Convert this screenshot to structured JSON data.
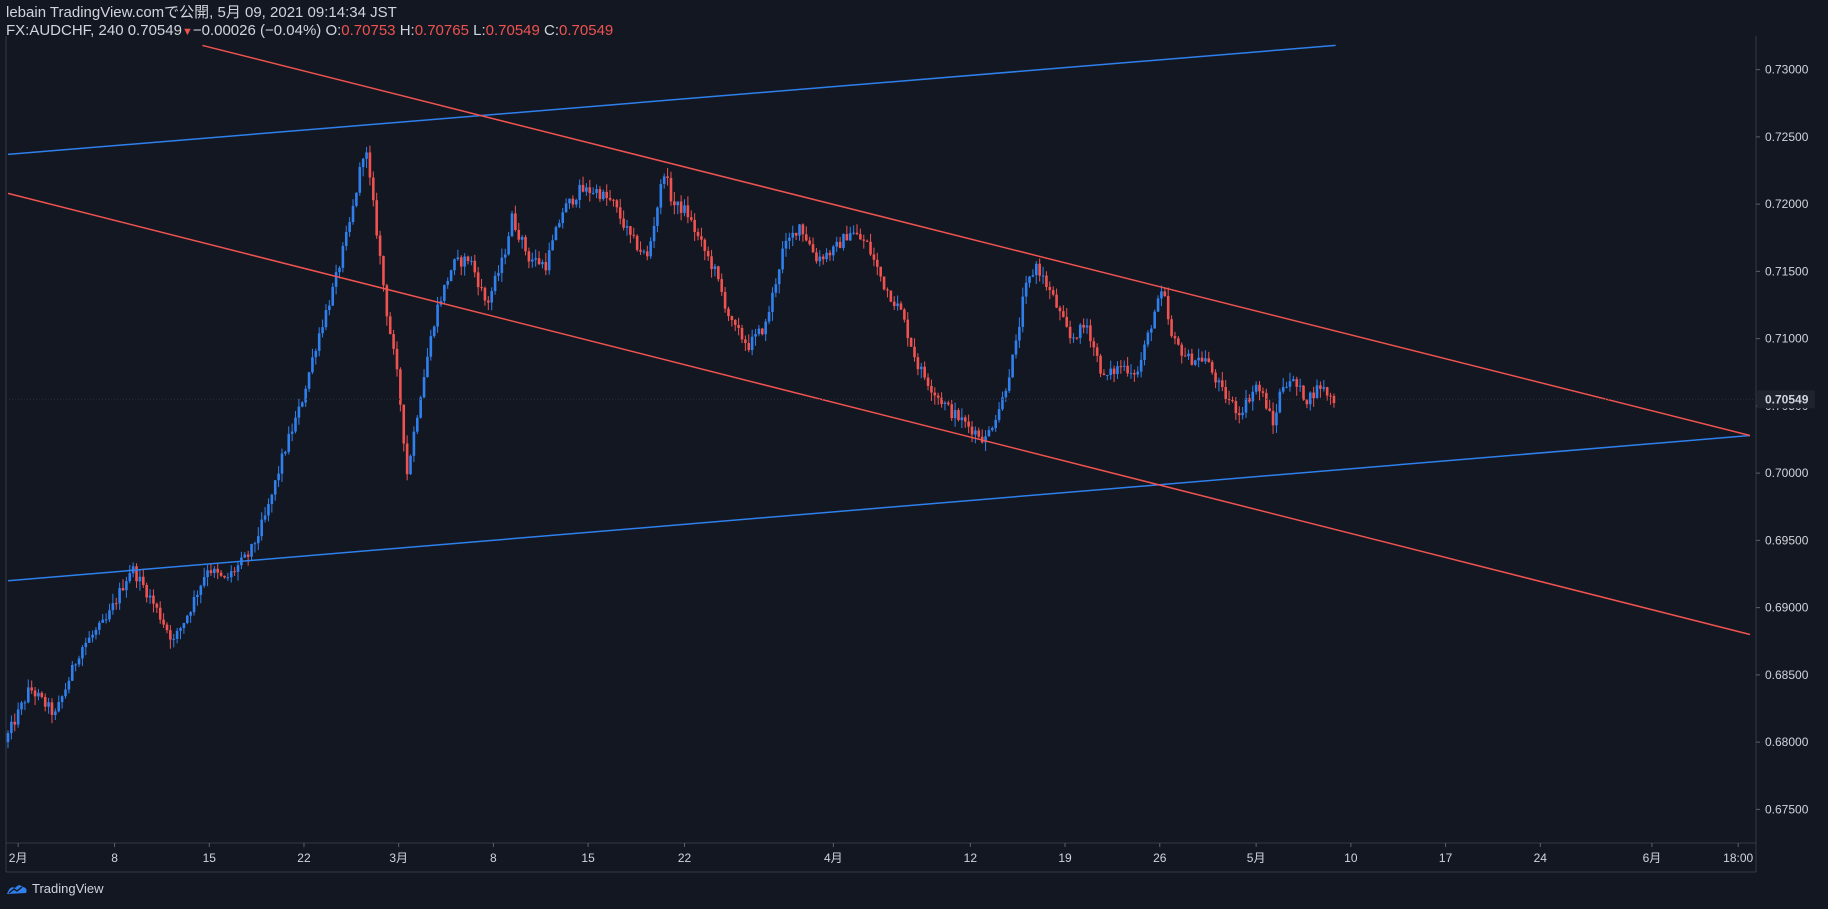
{
  "header": {
    "published_line": "lebain TradingView.comで公開, 5月 09, 2021 09:14:34 JST",
    "symbol_line": "FX:AUDCHF, 240",
    "last": "0.70549",
    "change": "−0.00026 (−0.04%)",
    "o_label": "O:",
    "o_value": "0.70753",
    "h_label": "H:",
    "h_value": "0.70765",
    "l_label": "L:",
    "l_value": "0.70549",
    "c_label": "C:",
    "c_value": "0.70549"
  },
  "footer": {
    "brand": "TradingView",
    "logo_icon": "tradingview-logo-icon"
  },
  "colors": {
    "background": "#131722",
    "up": "#2f80ed",
    "down": "#ef5350",
    "trend_blue": "#2f80ed",
    "trend_red": "#ef5350",
    "text": "#d1d4dc"
  },
  "chart_data": {
    "type": "candlestick",
    "symbol": "FX:AUDCHF",
    "interval": "240",
    "last_price_label": "0.70549",
    "ylim": [
      0.6725,
      0.7325
    ],
    "xlim": [
      0,
      103
    ],
    "y_ticks": [
      0.675,
      0.68,
      0.685,
      0.69,
      0.695,
      0.7,
      0.705,
      0.71,
      0.715,
      0.72,
      0.725,
      0.73
    ],
    "y_tick_labels": [
      "0.67500",
      "0.68000",
      "0.68500",
      "0.69000",
      "0.69500",
      "0.70000",
      "0.70500",
      "0.71000",
      "0.71500",
      "0.72000",
      "0.72500",
      "0.73000"
    ],
    "x_ticks": [
      {
        "label": "2月",
        "x": 0.6
      },
      {
        "label": "8",
        "x": 6.3
      },
      {
        "label": "15",
        "x": 11.9
      },
      {
        "label": "22",
        "x": 17.5
      },
      {
        "label": "3月",
        "x": 23.1
      },
      {
        "label": "8",
        "x": 28.7
      },
      {
        "label": "15",
        "x": 34.3
      },
      {
        "label": "22",
        "x": 40
      },
      {
        "label": "4月",
        "x": 48.8
      },
      {
        "label": "12",
        "x": 56.9
      },
      {
        "label": "19",
        "x": 62.5
      },
      {
        "label": "26",
        "x": 68.1
      },
      {
        "label": "5月",
        "x": 73.8
      },
      {
        "label": "10",
        "x": 79.4
      },
      {
        "label": "17",
        "x": 85
      },
      {
        "label": "24",
        "x": 90.6
      },
      {
        "label": "6月",
        "x": 97.2
      },
      {
        "label": "18:00",
        "x": 102.3
      }
    ],
    "path": [
      [
        0,
        0.68
      ],
      [
        1.5,
        0.684
      ],
      [
        3,
        0.682
      ],
      [
        4.5,
        0.687
      ],
      [
        6,
        0.689
      ],
      [
        7.5,
        0.693
      ],
      [
        8.5,
        0.691
      ],
      [
        10,
        0.6875
      ],
      [
        11,
        0.69
      ],
      [
        12,
        0.693
      ],
      [
        13,
        0.692
      ],
      [
        14.5,
        0.694
      ],
      [
        15.5,
        0.697
      ],
      [
        16.5,
        0.7015
      ],
      [
        17.5,
        0.705
      ],
      [
        18.5,
        0.71
      ],
      [
        19.5,
        0.714
      ],
      [
        20.5,
        0.719
      ],
      [
        21.3,
        0.7245
      ],
      [
        22,
        0.718
      ],
      [
        22.6,
        0.712
      ],
      [
        23.3,
        0.7065
      ],
      [
        23.8,
        0.7
      ],
      [
        24.6,
        0.706
      ],
      [
        25.5,
        0.712
      ],
      [
        26.5,
        0.7155
      ],
      [
        27.5,
        0.716
      ],
      [
        28.5,
        0.7125
      ],
      [
        29.5,
        0.716
      ],
      [
        30,
        0.719
      ],
      [
        31,
        0.716
      ],
      [
        32,
        0.7155
      ],
      [
        33,
        0.7195
      ],
      [
        34,
        0.721
      ],
      [
        35,
        0.721
      ],
      [
        36,
        0.72
      ],
      [
        37,
        0.7175
      ],
      [
        38,
        0.716
      ],
      [
        39,
        0.7225
      ],
      [
        39.5,
        0.72
      ],
      [
        40.3,
        0.7195
      ],
      [
        41,
        0.7175
      ],
      [
        42,
        0.715
      ],
      [
        43,
        0.711
      ],
      [
        44,
        0.7095
      ],
      [
        45,
        0.711
      ],
      [
        46,
        0.7165
      ],
      [
        47,
        0.7185
      ],
      [
        48,
        0.716
      ],
      [
        49,
        0.7165
      ],
      [
        50,
        0.718
      ],
      [
        51,
        0.717
      ],
      [
        52,
        0.714
      ],
      [
        53,
        0.712
      ],
      [
        54,
        0.708
      ],
      [
        55,
        0.706
      ],
      [
        56,
        0.7045
      ],
      [
        57,
        0.7035
      ],
      [
        58,
        0.7025
      ],
      [
        59,
        0.7055
      ],
      [
        59.8,
        0.7095
      ],
      [
        60.3,
        0.7135
      ],
      [
        61,
        0.7155
      ],
      [
        62,
        0.713
      ],
      [
        63,
        0.71
      ],
      [
        64,
        0.711
      ],
      [
        65,
        0.707
      ],
      [
        66,
        0.708
      ],
      [
        67,
        0.7075
      ],
      [
        68,
        0.712
      ],
      [
        68.5,
        0.7135
      ],
      [
        69,
        0.71
      ],
      [
        70,
        0.7085
      ],
      [
        71,
        0.7085
      ],
      [
        72,
        0.706
      ],
      [
        73,
        0.7045
      ],
      [
        74,
        0.7065
      ],
      [
        74.5,
        0.7055
      ],
      [
        75,
        0.7035
      ],
      [
        75.5,
        0.7065
      ],
      [
        76,
        0.707
      ],
      [
        77,
        0.7055
      ],
      [
        77.8,
        0.7065
      ],
      [
        78.5,
        0.7055
      ]
    ],
    "trendlines": [
      {
        "color": "trend_blue",
        "p1": [
          0,
          0.7237
        ],
        "p2": [
          78.5,
          0.7318
        ]
      },
      {
        "color": "trend_blue",
        "p1": [
          0,
          0.692
        ],
        "p2": [
          103,
          0.7028
        ]
      },
      {
        "color": "trend_red",
        "p1": [
          11.5,
          0.7318
        ],
        "p2": [
          103,
          0.7028
        ]
      },
      {
        "color": "trend_red",
        "p1": [
          0,
          0.7208
        ],
        "p2": [
          103,
          0.688
        ]
      }
    ]
  }
}
